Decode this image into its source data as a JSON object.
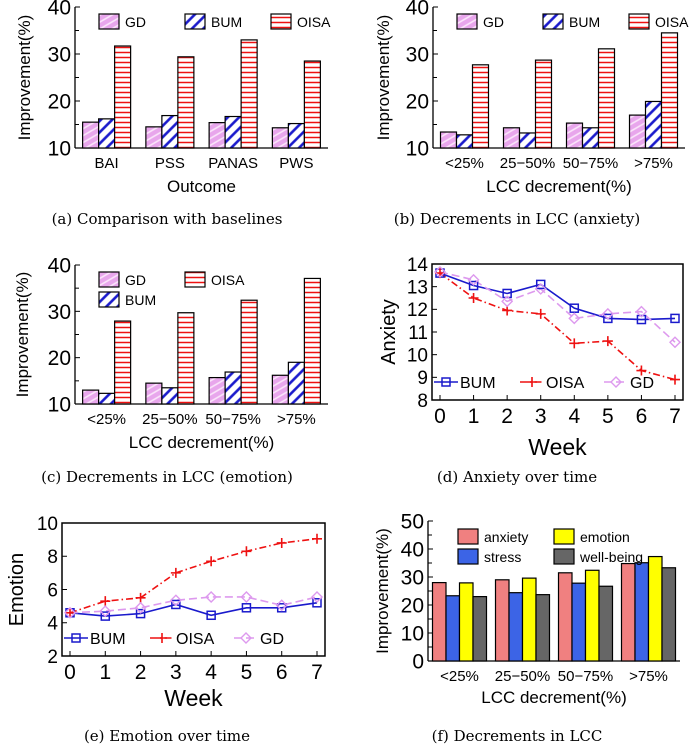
{
  "colors": {
    "GD": "#e8a6ec",
    "BUM": "#1a1acc",
    "OISA": "#ee1111",
    "anxiety": "#f08080",
    "stress": "#3c64e6",
    "emotion": "#ffff00",
    "well-being": "#666666",
    "gd_line": "#dd99ee"
  },
  "chart_data": [
    {
      "type": "bar",
      "caption": "(a)  Comparison with baselines",
      "ylabel": "Improvement(%)",
      "xlabel": "Outcome",
      "ylim": [
        10,
        40
      ],
      "yticks": [
        10,
        20,
        30,
        40
      ],
      "legend": "top",
      "categories": [
        "BAI",
        "PSS",
        "PANAS",
        "PWS"
      ],
      "series": [
        {
          "name": "GD",
          "values": [
            15.5,
            14.5,
            15.4,
            14.3
          ]
        },
        {
          "name": "BUM",
          "values": [
            16.2,
            16.9,
            16.7,
            15.2
          ]
        },
        {
          "name": "OISA",
          "values": [
            31.7,
            29.4,
            33.0,
            28.5
          ]
        }
      ]
    },
    {
      "type": "bar",
      "caption": "(b)  Decrements in LCC (anxiety)",
      "ylabel": "Improvement(%)",
      "xlabel": "LCC decrement(%)",
      "ylim": [
        10,
        40
      ],
      "yticks": [
        10,
        20,
        30,
        40
      ],
      "legend": "top",
      "categories": [
        "<25%",
        "25−50%",
        "50−75%",
        ">75%"
      ],
      "series": [
        {
          "name": "GD",
          "values": [
            13.4,
            14.3,
            15.3,
            17.0
          ]
        },
        {
          "name": "BUM",
          "values": [
            12.8,
            13.2,
            14.3,
            19.9
          ]
        },
        {
          "name": "OISA",
          "values": [
            27.7,
            28.7,
            31.1,
            34.5
          ]
        }
      ]
    },
    {
      "type": "bar",
      "caption": "(c)  Decrements in LCC (emotion)",
      "ylabel": "Improvement(%)",
      "xlabel": "LCC decrement(%)",
      "ylim": [
        10,
        40
      ],
      "yticks": [
        10,
        20,
        30,
        40
      ],
      "legend": "top-left",
      "categories": [
        "<25%",
        "25−50%",
        "50−75%",
        ">75%"
      ],
      "series": [
        {
          "name": "GD",
          "values": [
            13.0,
            14.5,
            15.7,
            16.2
          ]
        },
        {
          "name": "BUM",
          "values": [
            12.3,
            13.5,
            16.9,
            19.0
          ]
        },
        {
          "name": "OISA",
          "values": [
            27.9,
            29.7,
            32.4,
            37.1
          ]
        }
      ]
    },
    {
      "type": "line",
      "caption": "(d)  Anxiety over time",
      "ylabel": "Anxiety",
      "xlabel": "Week",
      "ylim": [
        8,
        14
      ],
      "yticks": [
        8,
        9,
        10,
        11,
        12,
        13,
        14
      ],
      "legend": "bottom",
      "x": [
        0,
        1,
        2,
        3,
        4,
        5,
        6,
        7
      ],
      "series": [
        {
          "name": "BUM",
          "values": [
            13.6,
            13.05,
            12.7,
            13.1,
            12.05,
            11.6,
            11.55,
            11.6
          ]
        },
        {
          "name": "OISA",
          "values": [
            13.6,
            12.5,
            11.95,
            11.8,
            10.5,
            10.6,
            9.3,
            8.9
          ]
        },
        {
          "name": "GD",
          "values": [
            13.65,
            13.3,
            12.35,
            12.9,
            11.6,
            11.8,
            11.9,
            10.55
          ]
        }
      ]
    },
    {
      "type": "line",
      "caption": "(e)  Emotion over time",
      "ylabel": "Emotion",
      "xlabel": "Week",
      "ylim": [
        2,
        10
      ],
      "yticks": [
        2,
        4,
        6,
        8,
        10
      ],
      "legend": "bottom",
      "x": [
        0,
        1,
        2,
        3,
        4,
        5,
        6,
        7
      ],
      "series": [
        {
          "name": "BUM",
          "values": [
            4.6,
            4.4,
            4.55,
            5.1,
            4.45,
            4.9,
            4.9,
            5.2
          ]
        },
        {
          "name": "OISA",
          "values": [
            4.6,
            5.3,
            5.5,
            7.0,
            7.7,
            8.3,
            8.8,
            9.05
          ]
        },
        {
          "name": "GD",
          "values": [
            4.6,
            4.7,
            4.9,
            5.35,
            5.55,
            5.55,
            5.05,
            5.55
          ]
        }
      ]
    },
    {
      "type": "bar",
      "caption": "(f)  Decrements in LCC",
      "ylabel": "Improvement(%)",
      "xlabel": "LCC decrement(%)",
      "ylim": [
        0,
        50
      ],
      "yticks": [
        0,
        10,
        20,
        30,
        40,
        50
      ],
      "legend": "top",
      "categories": [
        "<25%",
        "25−50%",
        "50−75%",
        ">75%"
      ],
      "series": [
        {
          "name": "anxiety",
          "values": [
            28.0,
            29.0,
            31.5,
            34.8
          ]
        },
        {
          "name": "stress",
          "values": [
            23.3,
            24.4,
            27.8,
            35.1
          ]
        },
        {
          "name": "emotion",
          "values": [
            27.9,
            29.6,
            32.4,
            37.3
          ]
        },
        {
          "name": "well-being",
          "values": [
            23.0,
            23.7,
            26.7,
            33.3
          ]
        }
      ]
    }
  ]
}
